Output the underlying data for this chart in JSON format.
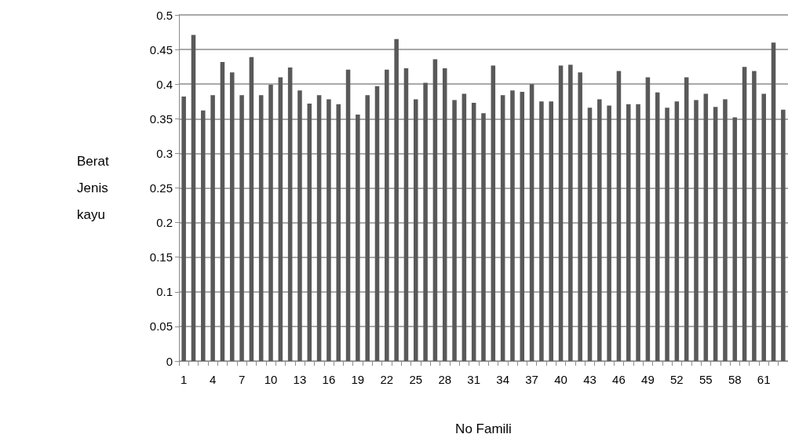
{
  "chart_data": {
    "type": "bar",
    "xlabel": "No Famili",
    "ylabel": "Berat Jenis kayu",
    "categories": [
      "1",
      null,
      null,
      "4",
      null,
      null,
      "7",
      null,
      null,
      "10",
      null,
      null,
      "13",
      null,
      null,
      "16",
      null,
      null,
      "19",
      null,
      null,
      "22",
      null,
      null,
      "25",
      null,
      null,
      "28",
      null,
      null,
      "31",
      null,
      null,
      "34",
      null,
      null,
      "37",
      null,
      null,
      "40",
      null,
      null,
      "43",
      null,
      null,
      "46",
      null,
      null,
      "49",
      null,
      null,
      "52",
      null,
      null,
      "55",
      null,
      null,
      "58",
      null,
      null,
      "61",
      null,
      null
    ],
    "values": [
      0.382,
      0.471,
      0.362,
      0.384,
      0.432,
      0.417,
      0.384,
      0.439,
      0.384,
      0.399,
      0.41,
      0.424,
      0.391,
      0.372,
      0.384,
      0.378,
      0.371,
      0.421,
      0.356,
      0.384,
      0.397,
      0.421,
      0.465,
      0.423,
      0.378,
      0.402,
      0.436,
      0.423,
      0.377,
      0.386,
      0.373,
      0.358,
      0.427,
      0.384,
      0.391,
      0.389,
      0.4,
      0.375,
      0.375,
      0.427,
      0.428,
      0.417,
      0.366,
      0.378,
      0.369,
      0.419,
      0.371,
      0.371,
      0.41,
      0.388,
      0.366,
      0.375,
      0.41,
      0.377,
      0.386,
      0.367,
      0.378,
      0.352,
      0.425,
      0.419,
      0.386,
      0.46,
      0.363
    ],
    "color": "#595959",
    "ylim": [
      0,
      0.5
    ],
    "yticks": [
      0,
      0.05,
      0.1,
      0.15,
      0.2,
      0.25,
      0.3,
      0.35,
      0.4,
      0.45,
      0.5
    ],
    "grid": "y"
  }
}
